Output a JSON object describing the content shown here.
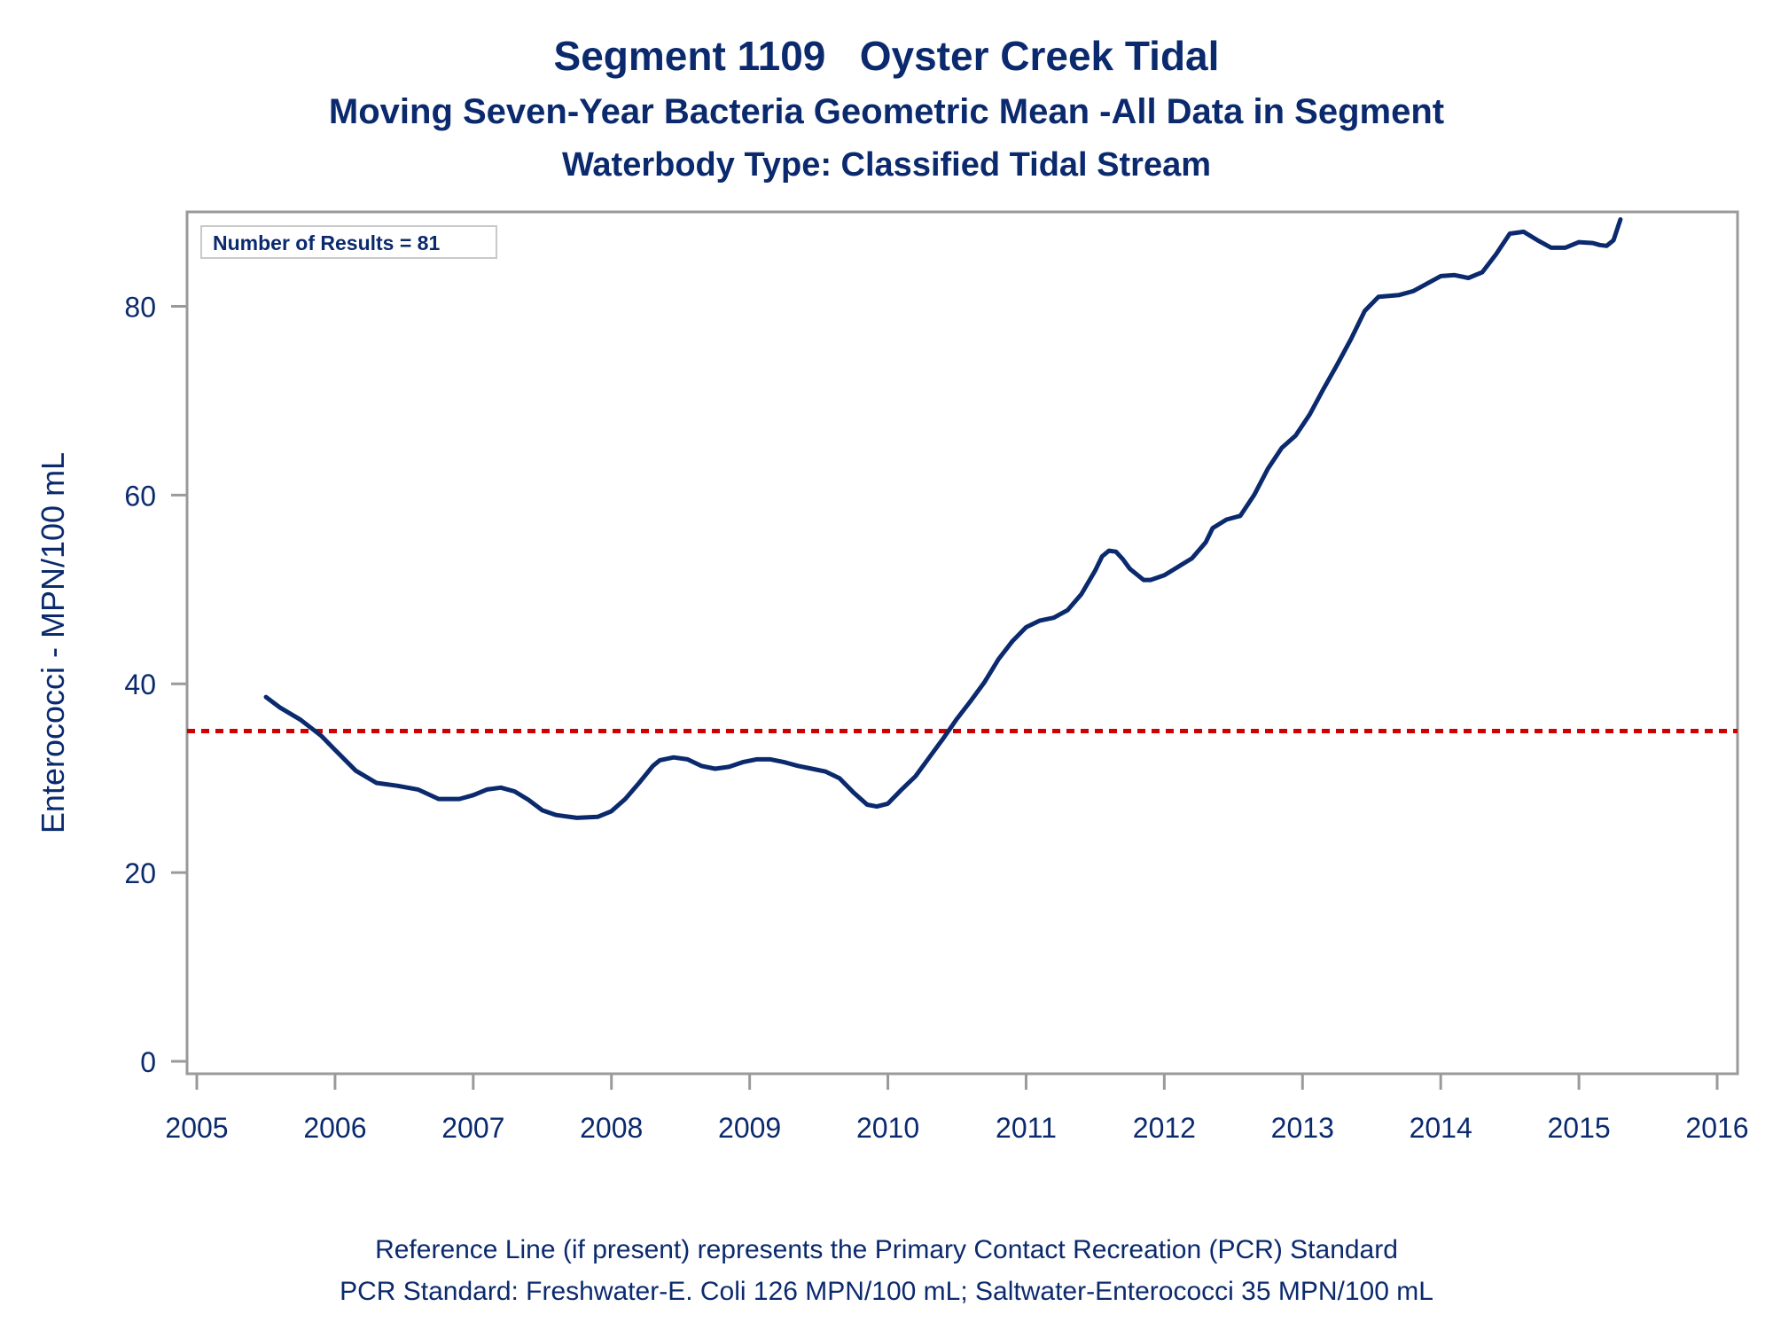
{
  "title": {
    "line1_part1": "Segment 1109",
    "line1_part2": "Oyster Creek Tidal",
    "line2": "Moving Seven-Year Bacteria Geometric Mean -All Data in Segment",
    "line3": "Waterbody Type: Classified Tidal Stream"
  },
  "footnotes": {
    "line1": "Reference Line (if present) represents the Primary Contact Recreation (PCR) Standard",
    "line2": "PCR Standard: Freshwater-E. Coli 126 MPN/100 mL; Saltwater-Enterococci 35 MPN/100 mL"
  },
  "inset_label": "Number of Results = 81",
  "colors": {
    "text": "#0b2a6e",
    "series": "#0b2a6e",
    "reference": "#d00000",
    "frame": "#9a9a9a"
  },
  "chart_data": {
    "type": "line",
    "ylabel": "Enterococci - MPN/100 mL",
    "xlabel": "",
    "xlim": [
      2005,
      2016
    ],
    "ylim": [
      0,
      90
    ],
    "x_ticks": [
      2005,
      2006,
      2007,
      2008,
      2009,
      2010,
      2011,
      2012,
      2013,
      2014,
      2015,
      2016
    ],
    "y_ticks": [
      0,
      20,
      40,
      60,
      80
    ],
    "grid": false,
    "reference_line": {
      "y": 35,
      "style": "dotted"
    },
    "series": [
      {
        "x": [
          2005.5,
          2005.6,
          2005.75,
          2005.9,
          2006.0,
          2006.15,
          2006.3,
          2006.45,
          2006.6,
          2006.75,
          2006.9,
          2007.0,
          2007.1,
          2007.2,
          2007.3,
          2007.4,
          2007.5,
          2007.6,
          2007.75,
          2007.9,
          2008.0,
          2008.1,
          2008.2,
          2008.3,
          2008.35,
          2008.45,
          2008.55,
          2008.65,
          2008.75,
          2008.85,
          2008.95,
          2009.05,
          2009.15,
          2009.25,
          2009.35,
          2009.45,
          2009.55,
          2009.65,
          2009.75,
          2009.85,
          2009.92,
          2010.0,
          2010.1,
          2010.2,
          2010.3,
          2010.4,
          2010.5,
          2010.6,
          2010.7,
          2010.8,
          2010.9,
          2011.0,
          2011.1,
          2011.2,
          2011.3,
          2011.4,
          2011.5,
          2011.55,
          2011.6,
          2011.65,
          2011.7,
          2011.75,
          2011.85,
          2011.9,
          2012.0,
          2012.1,
          2012.2,
          2012.3,
          2012.35,
          2012.45,
          2012.55,
          2012.65,
          2012.75,
          2012.85,
          2012.95,
          2013.05,
          2013.15,
          2013.25,
          2013.35,
          2013.45,
          2013.55,
          2013.7,
          2013.8,
          2013.9,
          2014.0,
          2014.1,
          2014.2,
          2014.3,
          2014.4,
          2014.5,
          2014.6,
          2014.7,
          2014.8,
          2014.9,
          2015.0,
          2015.1,
          2015.15,
          2015.2,
          2015.25,
          2015.3
        ],
        "y": [
          38.6,
          37.5,
          36.2,
          34.5,
          33.0,
          30.8,
          29.5,
          29.2,
          28.8,
          27.8,
          27.8,
          28.2,
          28.8,
          29.0,
          28.6,
          27.7,
          26.6,
          26.1,
          25.8,
          25.9,
          26.5,
          27.8,
          29.5,
          31.3,
          31.9,
          32.2,
          32.0,
          31.3,
          31.0,
          31.2,
          31.7,
          32.0,
          32.0,
          31.7,
          31.3,
          31.0,
          30.7,
          30.0,
          28.5,
          27.2,
          27.0,
          27.3,
          28.8,
          30.2,
          32.2,
          34.2,
          36.3,
          38.2,
          40.2,
          42.6,
          44.5,
          46.0,
          46.7,
          47.0,
          47.8,
          49.5,
          52.0,
          53.5,
          54.1,
          54.0,
          53.2,
          52.2,
          51.0,
          51.0,
          51.5,
          52.4,
          53.3,
          55.0,
          56.5,
          57.4,
          57.8,
          60.0,
          62.8,
          65.0,
          66.3,
          68.5,
          71.2,
          73.8,
          76.5,
          79.5,
          81.0,
          81.2,
          81.6,
          82.4,
          83.2,
          83.3,
          83.0,
          83.6,
          85.5,
          87.7,
          87.9,
          87.0,
          86.2,
          86.2,
          86.8,
          86.7,
          86.5,
          86.4,
          87.0,
          89.2
        ]
      }
    ]
  }
}
